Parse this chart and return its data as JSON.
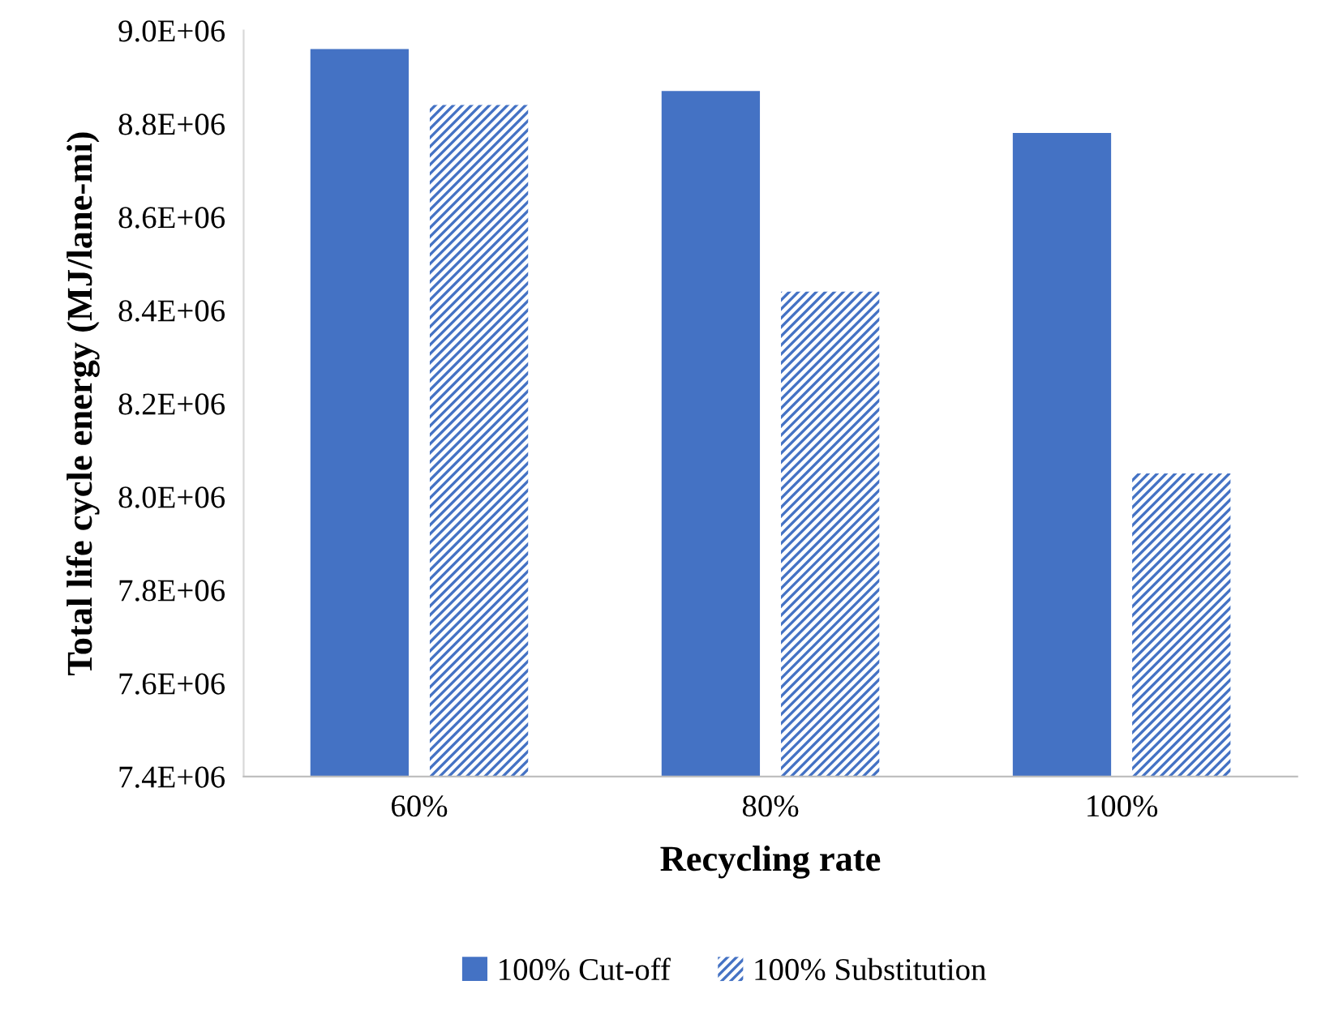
{
  "chart_data": {
    "type": "bar",
    "xlabel": "Recycling rate",
    "ylabel": "Total life cycle energy (MJ/lane-mi)",
    "categories": [
      "60%",
      "80%",
      "100%"
    ],
    "series": [
      {
        "name": "100% Cut-off",
        "color": "#4472c4",
        "values": [
          8960000,
          8870000,
          8780000
        ]
      },
      {
        "name": "100% Substitution",
        "color": "#4472c4",
        "values": [
          8840000,
          8440000,
          8050000
        ]
      }
    ],
    "ylim": [
      7400000,
      9000000
    ],
    "yticks": [
      {
        "value": 7400000,
        "label": "7.4E+06"
      },
      {
        "value": 7600000,
        "label": "7.6E+06"
      },
      {
        "value": 7800000,
        "label": "7.8E+06"
      },
      {
        "value": 8000000,
        "label": "8.0E+06"
      },
      {
        "value": 8200000,
        "label": "8.2E+06"
      },
      {
        "value": 8400000,
        "label": "8.4E+06"
      },
      {
        "value": 8600000,
        "label": "8.6E+06"
      },
      {
        "value": 8800000,
        "label": "8.8E+06"
      },
      {
        "value": 9000000,
        "label": "9.0E+06"
      }
    ],
    "grid": false,
    "legend": "bottom"
  }
}
